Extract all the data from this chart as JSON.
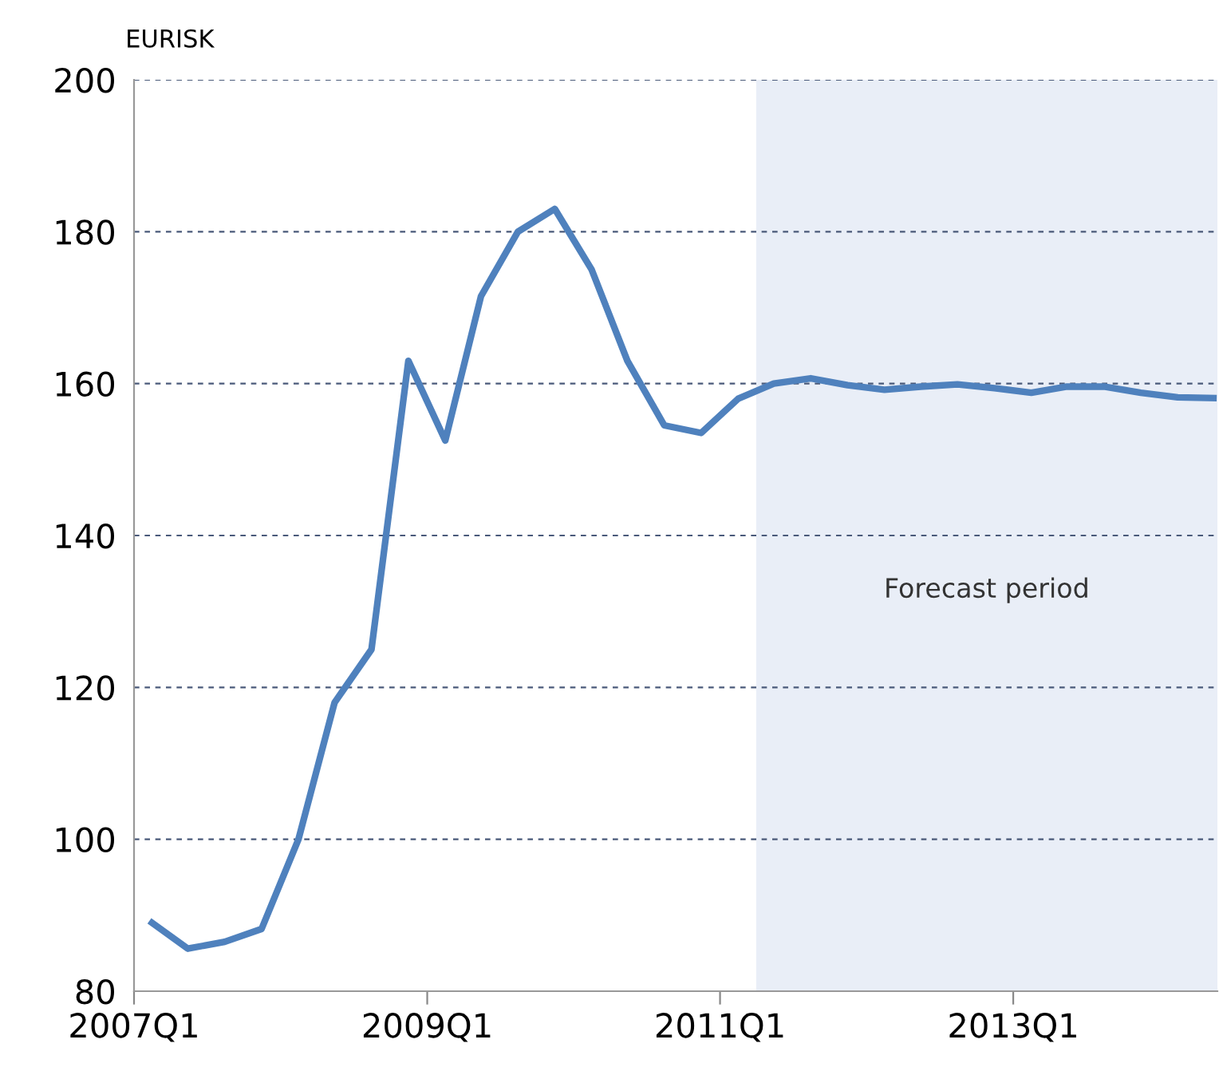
{
  "chart_data": {
    "type": "line",
    "ylabel": "EURISK",
    "x": [
      "2007-02-15",
      "2007-05-15",
      "2007-08-15",
      "2007-11-15",
      "2008-02-15",
      "2008-05-15",
      "2008-08-15",
      "2008-11-15",
      "2009-02-15",
      "2009-05-15",
      "2009-08-15",
      "2009-11-15",
      "2010-02-15",
      "2010-05-15",
      "2010-08-15",
      "2010-11-15",
      "2011-02-15",
      "2011-05-15",
      "2011-08-15",
      "2011-11-15",
      "2012-02-15",
      "2012-05-15",
      "2012-08-15",
      "2012-11-15",
      "2013-02-15",
      "2013-05-15",
      "2013-08-15",
      "2013-11-15",
      "2014-02-15",
      "2014-05-15"
    ],
    "series": [
      {
        "color": "#4f81bd",
        "values": [
          89,
          85.6,
          86.5,
          88.2,
          100,
          118,
          125,
          163,
          152.5,
          171.5,
          180,
          183,
          175,
          163,
          154.5,
          153.5,
          158,
          160,
          160.7,
          159.8,
          159.2,
          159.6,
          159.9,
          159.4,
          158.8,
          159.6,
          159.6,
          158.8,
          158.2,
          158.1
        ]
      }
    ],
    "xlim": [
      "2007-01-01",
      "2014-05-25"
    ],
    "xticks": [
      {
        "value": "2007-01-01",
        "label": "2007Q1"
      },
      {
        "value": "2009-01-01",
        "label": "2009Q1"
      },
      {
        "value": "2011-01-01",
        "label": "2011Q1"
      },
      {
        "value": "2013-01-01",
        "label": "2013Q1"
      }
    ],
    "ylim": [
      80,
      200
    ],
    "yticks": [
      80,
      100,
      120,
      140,
      160,
      180,
      200
    ],
    "grid": "y",
    "line_style": "solid",
    "marker": "none",
    "bands": [
      {
        "axis": "x",
        "from": "2011-04-01",
        "to": "2014-05-25",
        "label": "Forecast period",
        "color": "#e9eef7"
      }
    ]
  }
}
